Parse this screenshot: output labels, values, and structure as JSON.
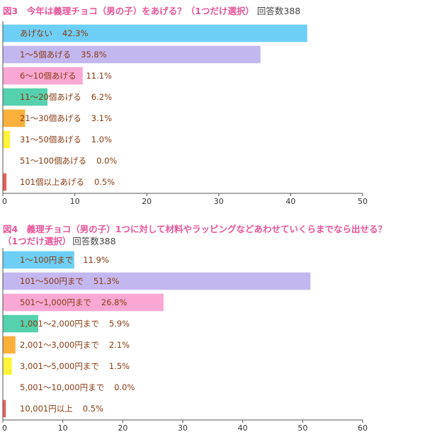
{
  "chart_data": [
    {
      "type": "bar",
      "orientation": "horizontal",
      "title": "図3　今年は義理チョコ（男の子）をあげる？（1つだけ選択）",
      "response_count": "回答数388",
      "categories": [
        "あげない",
        "1～5個あげる",
        "6～10個あげる",
        "11～20個あげる",
        "21～30個あげる",
        "31～50個あげる",
        "51～100個あげる",
        "101個以上あげる"
      ],
      "values": [
        42.3,
        35.8,
        11.1,
        6.2,
        3.1,
        1.0,
        0.0,
        0.5
      ],
      "value_labels": [
        "42.3%",
        "35.8%",
        "11.1%",
        "6.2%",
        "3.1%",
        "1.0%",
        "0.0%",
        "0.5%"
      ],
      "colors": [
        "#6dcff6",
        "#c3b7f0",
        "#f9a8d4",
        "#55d1ad",
        "#fbb03b",
        "#fff33b",
        "#cccccc",
        "#e8605a"
      ],
      "xlim": [
        0,
        50
      ],
      "xticks": [
        "0",
        "10",
        "20",
        "30",
        "40",
        "50"
      ],
      "grid": false,
      "legend": "none"
    },
    {
      "type": "bar",
      "orientation": "horizontal",
      "title_line1": "図4　義理チョコ（男の子）1つに対して材料やラッピングなどあわせていくらまでなら出せる？",
      "title_line2": "（1つだけ選択）",
      "response_count": "回答数388",
      "categories": [
        "1～100円まで",
        "101～500円まで",
        "501～1,000円まで",
        "1,001～2,000円まで",
        "2,001～3,000円まで",
        "3,001～5,000円まで",
        "5,001～10,000円まで",
        "10,001円以上"
      ],
      "values": [
        11.9,
        51.3,
        26.8,
        5.9,
        2.1,
        1.5,
        0.0,
        0.5
      ],
      "value_labels": [
        "11.9%",
        "51.3%",
        "26.8%",
        "5.9%",
        "2.1%",
        "1.5%",
        "0.0%",
        "0.5%"
      ],
      "colors": [
        "#6dcff6",
        "#c3b7f0",
        "#f9a8d4",
        "#55d1ad",
        "#fbb03b",
        "#fff33b",
        "#cccccc",
        "#e8605a"
      ],
      "xlim": [
        0,
        60
      ],
      "xticks": [
        "0",
        "10",
        "20",
        "30",
        "40",
        "50",
        "60"
      ],
      "grid": false,
      "legend": "none"
    }
  ]
}
